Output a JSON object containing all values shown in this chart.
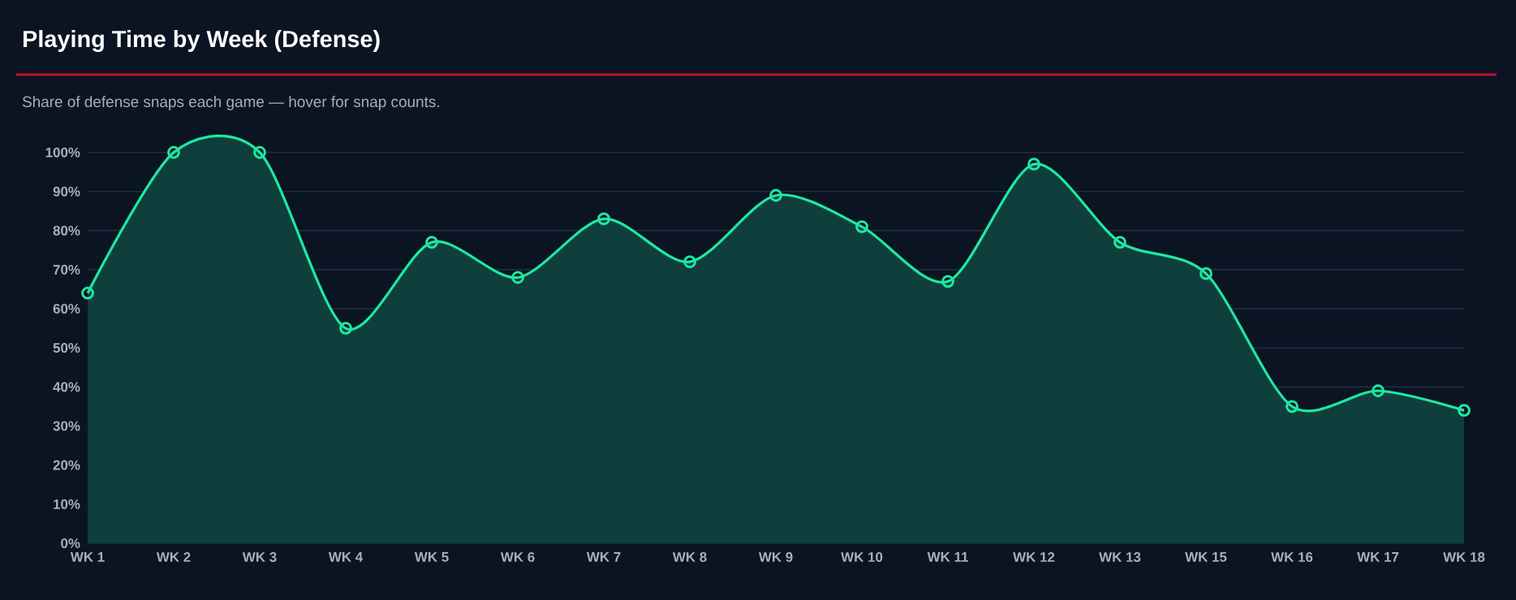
{
  "chart_data": {
    "type": "area",
    "title": "Playing Time by Week (Defense)",
    "subtitle": "Share of defense snaps each game — hover for snap counts.",
    "categories": [
      "WK 1",
      "WK 2",
      "WK 3",
      "WK 4",
      "WK 5",
      "WK 6",
      "WK 7",
      "WK 8",
      "WK 9",
      "WK 10",
      "WK 11",
      "WK 12",
      "WK 13",
      "WK 15",
      "WK 16",
      "WK 17",
      "WK 18"
    ],
    "values": [
      64,
      100,
      100,
      55,
      77,
      68,
      83,
      72,
      89,
      81,
      67,
      97,
      77,
      69,
      35,
      39,
      34
    ],
    "color": "#1de9a0",
    "marker": "circle",
    "grid": "y",
    "ylim": [
      0,
      100
    ],
    "yticks": [
      {
        "value": 0,
        "label": "0%"
      },
      {
        "value": 10,
        "label": "10%"
      },
      {
        "value": 20,
        "label": "20%"
      },
      {
        "value": 30,
        "label": "30%"
      },
      {
        "value": 40,
        "label": "40%"
      },
      {
        "value": 50,
        "label": "50%"
      },
      {
        "value": 60,
        "label": "60%"
      },
      {
        "value": 70,
        "label": "70%"
      },
      {
        "value": 80,
        "label": "80%"
      },
      {
        "value": 90,
        "label": "90%"
      },
      {
        "value": 100,
        "label": "100%"
      }
    ]
  }
}
